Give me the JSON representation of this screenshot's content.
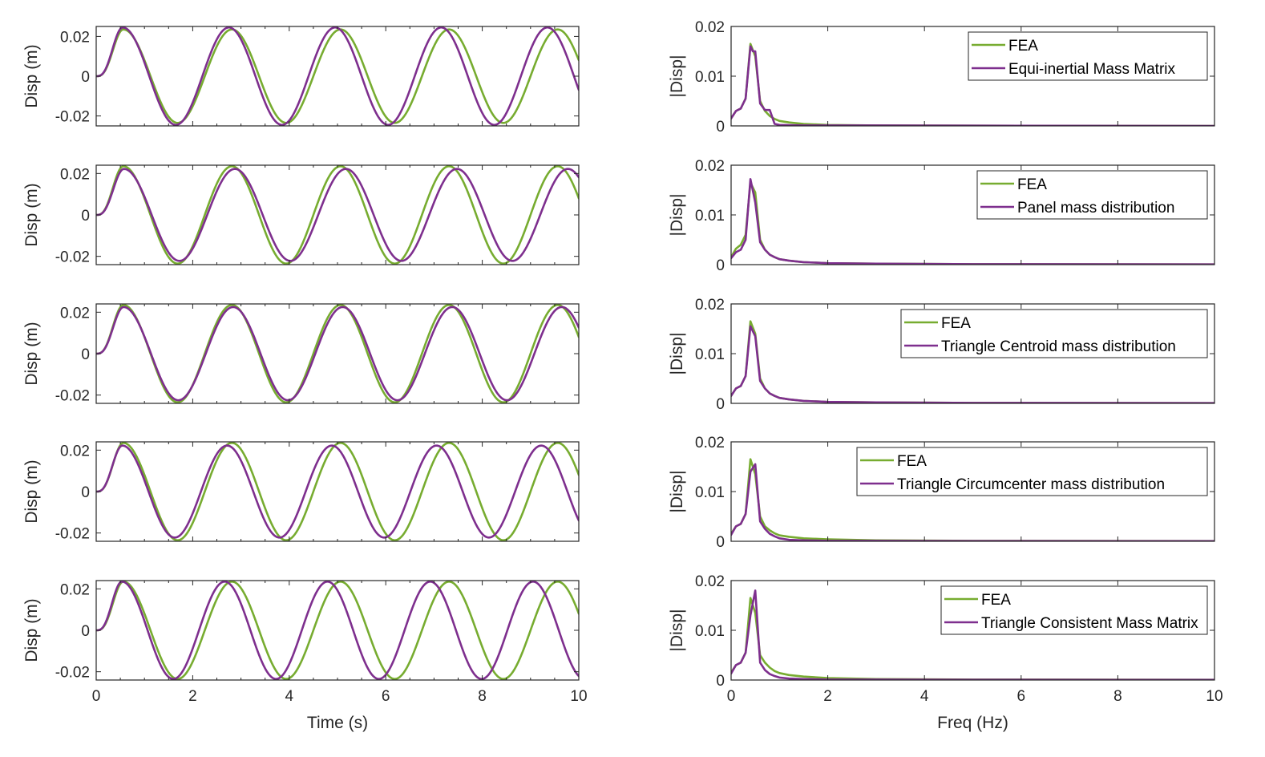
{
  "colors": {
    "fea": "#77ac30",
    "model": "#7e2f8e",
    "axis": "#262626"
  },
  "chart_data": [
    {
      "type": "line",
      "panel": "time",
      "row": 0,
      "xlabel": "",
      "ylabel": "Disp (m)",
      "xlim": [
        0,
        10
      ],
      "ylim": [
        -0.025,
        0.025
      ],
      "xticks": [
        0,
        2,
        4,
        6,
        8,
        10
      ],
      "xtick_labels": [
        "",
        "",
        "",
        "",
        "",
        ""
      ],
      "yticks": [
        -0.02,
        0,
        0.02
      ],
      "ytick_labels": [
        "-0.02",
        "0",
        "0.02"
      ],
      "series": [
        {
          "key": "fea",
          "amplitude": 0.0235,
          "period": 2.25
        },
        {
          "key": "model",
          "amplitude": 0.0245,
          "period": 2.2
        }
      ]
    },
    {
      "type": "line",
      "panel": "time",
      "row": 1,
      "xlabel": "",
      "ylabel": "Disp (m)",
      "xlim": [
        0,
        10
      ],
      "ylim": [
        -0.024,
        0.024
      ],
      "xticks": [
        0,
        2,
        4,
        6,
        8,
        10
      ],
      "xtick_labels": [
        "",
        "",
        "",
        "",
        "",
        ""
      ],
      "yticks": [
        -0.02,
        0,
        0.02
      ],
      "ytick_labels": [
        "-0.02",
        "0",
        "0.02"
      ],
      "series": [
        {
          "key": "fea",
          "amplitude": 0.0235,
          "period": 2.25
        },
        {
          "key": "model",
          "amplitude": 0.0222,
          "period": 2.3
        }
      ]
    },
    {
      "type": "line",
      "panel": "time",
      "row": 2,
      "xlabel": "",
      "ylabel": "Disp (m)",
      "xlim": [
        0,
        10
      ],
      "ylim": [
        -0.024,
        0.024
      ],
      "xticks": [
        0,
        2,
        4,
        6,
        8,
        10
      ],
      "xtick_labels": [
        "",
        "",
        "",
        "",
        "",
        ""
      ],
      "yticks": [
        -0.02,
        0,
        0.02
      ],
      "ytick_labels": [
        "-0.02",
        "0",
        "0.02"
      ],
      "series": [
        {
          "key": "fea",
          "amplitude": 0.0235,
          "period": 2.25
        },
        {
          "key": "model",
          "amplitude": 0.0225,
          "period": 2.27
        }
      ]
    },
    {
      "type": "line",
      "panel": "time",
      "row": 3,
      "xlabel": "",
      "ylabel": "Disp (m)",
      "xlim": [
        0,
        10
      ],
      "ylim": [
        -0.024,
        0.024
      ],
      "xticks": [
        0,
        2,
        4,
        6,
        8,
        10
      ],
      "xtick_labels": [
        "",
        "",
        "",
        "",
        "",
        ""
      ],
      "yticks": [
        -0.02,
        0,
        0.02
      ],
      "ytick_labels": [
        "-0.02",
        "0",
        "0.02"
      ],
      "series": [
        {
          "key": "fea",
          "amplitude": 0.0235,
          "period": 2.25
        },
        {
          "key": "model",
          "amplitude": 0.0222,
          "period": 2.17
        }
      ]
    },
    {
      "type": "line",
      "panel": "time",
      "row": 4,
      "xlabel": "Time (s)",
      "ylabel": "Disp (m)",
      "xlim": [
        0,
        10
      ],
      "ylim": [
        -0.024,
        0.024
      ],
      "xticks": [
        0,
        2,
        4,
        6,
        8,
        10
      ],
      "xtick_labels": [
        "0",
        "2",
        "4",
        "6",
        "8",
        "10"
      ],
      "yticks": [
        -0.02,
        0,
        0.02
      ],
      "ytick_labels": [
        "-0.02",
        "0",
        "0.02"
      ],
      "series": [
        {
          "key": "fea",
          "amplitude": 0.0235,
          "period": 2.25
        },
        {
          "key": "model",
          "amplitude": 0.0235,
          "period": 2.13
        }
      ]
    },
    {
      "type": "line",
      "panel": "freq",
      "row": 0,
      "xlabel": "",
      "ylabel": "|Disp|",
      "xlim": [
        0,
        10
      ],
      "ylim": [
        0,
        0.02
      ],
      "xticks": [
        0,
        2,
        4,
        6,
        8,
        10
      ],
      "xtick_labels": [
        "",
        "",
        "",
        "",
        "",
        ""
      ],
      "yticks": [
        0,
        0.01,
        0.02
      ],
      "ytick_labels": [
        "0",
        "0.01",
        "0.02"
      ],
      "legend": {
        "position": "top-right",
        "entries": [
          "FEA",
          "Equi-inertial Mass Matrix"
        ]
      },
      "series": [
        {
          "key": "fea",
          "name": "FEA",
          "x": [
            0,
            0.1,
            0.2,
            0.3,
            0.4,
            0.5,
            0.6,
            0.7,
            0.8,
            0.9,
            1.0,
            1.2,
            1.5,
            2,
            3,
            5,
            10
          ],
          "y": [
            0.0015,
            0.003,
            0.0035,
            0.0055,
            0.0165,
            0.014,
            0.005,
            0.003,
            0.002,
            0.0014,
            0.001,
            0.0007,
            0.0004,
            0.0002,
            0.0001,
            5e-05,
            0
          ]
        },
        {
          "key": "model",
          "name": "Equi-inertial Mass Matrix",
          "x": [
            0,
            0.1,
            0.2,
            0.3,
            0.4,
            0.45,
            0.5,
            0.6,
            0.7,
            0.8,
            0.9,
            1.0,
            1.5,
            2,
            3,
            5,
            10
          ],
          "y": [
            0.0015,
            0.003,
            0.0035,
            0.0055,
            0.016,
            0.015,
            0.015,
            0.0045,
            0.0032,
            0.0032,
            0.0004,
            0.0002,
            0.0001,
            0.0001,
            0.0001,
            5e-05,
            0
          ]
        }
      ]
    },
    {
      "type": "line",
      "panel": "freq",
      "row": 1,
      "xlabel": "",
      "ylabel": "|Disp|",
      "xlim": [
        0,
        10
      ],
      "ylim": [
        0,
        0.02
      ],
      "xticks": [
        0,
        2,
        4,
        6,
        8,
        10
      ],
      "xtick_labels": [
        "",
        "",
        "",
        "",
        "",
        ""
      ],
      "yticks": [
        0,
        0.01,
        0.02
      ],
      "ytick_labels": [
        "0",
        "0.01",
        "0.02"
      ],
      "legend": {
        "position": "top-right",
        "entries": [
          "FEA",
          "Panel mass distribution"
        ]
      },
      "series": [
        {
          "key": "fea",
          "name": "FEA",
          "x": [
            0,
            0.1,
            0.2,
            0.3,
            0.4,
            0.5,
            0.6,
            0.7,
            0.8,
            0.9,
            1.0,
            1.2,
            1.5,
            2,
            3,
            5,
            10
          ],
          "y": [
            0.0015,
            0.0032,
            0.004,
            0.006,
            0.0165,
            0.0145,
            0.005,
            0.003,
            0.002,
            0.0015,
            0.0011,
            0.0008,
            0.0005,
            0.0003,
            0.0002,
            0.0001,
            5e-05
          ]
        },
        {
          "key": "model",
          "name": "Panel mass distribution",
          "x": [
            0,
            0.1,
            0.2,
            0.3,
            0.4,
            0.5,
            0.6,
            0.7,
            0.8,
            0.9,
            1.0,
            1.2,
            1.5,
            2,
            3,
            5,
            10
          ],
          "y": [
            0.0013,
            0.0025,
            0.003,
            0.005,
            0.0172,
            0.0125,
            0.0045,
            0.003,
            0.002,
            0.0015,
            0.0011,
            0.0008,
            0.0005,
            0.0003,
            0.0002,
            0.0001,
            5e-05
          ]
        }
      ]
    },
    {
      "type": "line",
      "panel": "freq",
      "row": 2,
      "xlabel": "",
      "ylabel": "|Disp|",
      "xlim": [
        0,
        10
      ],
      "ylim": [
        0,
        0.02
      ],
      "xticks": [
        0,
        2,
        4,
        6,
        8,
        10
      ],
      "xtick_labels": [
        "",
        "",
        "",
        "",
        "",
        ""
      ],
      "yticks": [
        0,
        0.01,
        0.02
      ],
      "ytick_labels": [
        "0",
        "0.01",
        "0.02"
      ],
      "legend": {
        "position": "top-right",
        "entries": [
          "FEA",
          "Triangle Centroid mass distribution"
        ]
      },
      "series": [
        {
          "key": "fea",
          "name": "FEA",
          "x": [
            0,
            0.1,
            0.2,
            0.3,
            0.4,
            0.5,
            0.6,
            0.7,
            0.8,
            0.9,
            1.0,
            1.2,
            1.5,
            2,
            3,
            5,
            10
          ],
          "y": [
            0.0015,
            0.003,
            0.0035,
            0.0055,
            0.0165,
            0.014,
            0.005,
            0.003,
            0.002,
            0.0015,
            0.0011,
            0.0008,
            0.0005,
            0.0003,
            0.0002,
            0.0001,
            5e-05
          ]
        },
        {
          "key": "model",
          "name": "Triangle Centroid mass distribution",
          "x": [
            0,
            0.1,
            0.2,
            0.3,
            0.4,
            0.5,
            0.6,
            0.7,
            0.8,
            0.9,
            1.0,
            1.2,
            1.5,
            2,
            3,
            5,
            10
          ],
          "y": [
            0.0015,
            0.003,
            0.0035,
            0.0055,
            0.0155,
            0.0135,
            0.0045,
            0.003,
            0.002,
            0.0015,
            0.0011,
            0.0008,
            0.0005,
            0.0003,
            0.0002,
            0.0001,
            5e-05
          ]
        }
      ]
    },
    {
      "type": "line",
      "panel": "freq",
      "row": 3,
      "xlabel": "",
      "ylabel": "|Disp|",
      "xlim": [
        0,
        10
      ],
      "ylim": [
        0,
        0.02
      ],
      "xticks": [
        0,
        2,
        4,
        6,
        8,
        10
      ],
      "xtick_labels": [
        "",
        "",
        "",
        "",
        "",
        ""
      ],
      "yticks": [
        0,
        0.01,
        0.02
      ],
      "ytick_labels": [
        "0",
        "0.01",
        "0.02"
      ],
      "legend": {
        "position": "top-right",
        "entries": [
          "FEA",
          "Triangle Circumcenter mass distribution"
        ]
      },
      "series": [
        {
          "key": "fea",
          "name": "FEA",
          "x": [
            0,
            0.1,
            0.2,
            0.3,
            0.4,
            0.5,
            0.6,
            0.7,
            0.8,
            0.9,
            1.0,
            1.2,
            1.5,
            2,
            3,
            5,
            10
          ],
          "y": [
            0.0015,
            0.003,
            0.0035,
            0.0055,
            0.0165,
            0.0135,
            0.005,
            0.003,
            0.0022,
            0.0016,
            0.0012,
            0.0009,
            0.0006,
            0.0004,
            0.0002,
            0.0001,
            5e-05
          ]
        },
        {
          "key": "model",
          "name": "Triangle Circumcenter mass distribution",
          "x": [
            0,
            0.1,
            0.2,
            0.3,
            0.4,
            0.5,
            0.6,
            0.7,
            0.8,
            0.9,
            1.0,
            1.2,
            1.5,
            2,
            3,
            5,
            10
          ],
          "y": [
            0.0013,
            0.003,
            0.0035,
            0.0055,
            0.014,
            0.0155,
            0.004,
            0.0025,
            0.0015,
            0.001,
            0.0006,
            0.0003,
            0.0002,
            0.0001,
            0.0001,
            5e-05,
            3e-05
          ]
        }
      ]
    },
    {
      "type": "line",
      "panel": "freq",
      "row": 4,
      "xlabel": "Freq (Hz)",
      "ylabel": "|Disp|",
      "xlim": [
        0,
        10
      ],
      "ylim": [
        0,
        0.02
      ],
      "xticks": [
        0,
        2,
        4,
        6,
        8,
        10
      ],
      "xtick_labels": [
        "0",
        "2",
        "4",
        "6",
        "8",
        "10"
      ],
      "yticks": [
        0,
        0.01,
        0.02
      ],
      "ytick_labels": [
        "0",
        "0.01",
        "0.02"
      ],
      "legend": {
        "position": "top-right",
        "entries": [
          "FEA",
          "Triangle Consistent Mass Matrix"
        ]
      },
      "series": [
        {
          "key": "fea",
          "name": "FEA",
          "x": [
            0,
            0.1,
            0.2,
            0.3,
            0.4,
            0.5,
            0.6,
            0.7,
            0.8,
            0.9,
            1.0,
            1.2,
            1.5,
            2,
            3,
            5,
            10
          ],
          "y": [
            0.0015,
            0.003,
            0.0035,
            0.0055,
            0.0165,
            0.0135,
            0.005,
            0.0035,
            0.0025,
            0.0018,
            0.0014,
            0.001,
            0.0007,
            0.0004,
            0.0002,
            0.0001,
            5e-05
          ]
        },
        {
          "key": "model",
          "name": "Triangle Consistent Mass Matrix",
          "x": [
            0,
            0.1,
            0.2,
            0.3,
            0.4,
            0.5,
            0.6,
            0.7,
            0.8,
            0.9,
            1.0,
            1.2,
            1.5,
            2,
            3,
            5,
            10
          ],
          "y": [
            0.0013,
            0.003,
            0.0035,
            0.0055,
            0.013,
            0.018,
            0.0035,
            0.002,
            0.0012,
            0.0008,
            0.0005,
            0.0003,
            0.0002,
            0.0001,
            0.0001,
            5e-05,
            3e-05
          ]
        }
      ]
    }
  ]
}
